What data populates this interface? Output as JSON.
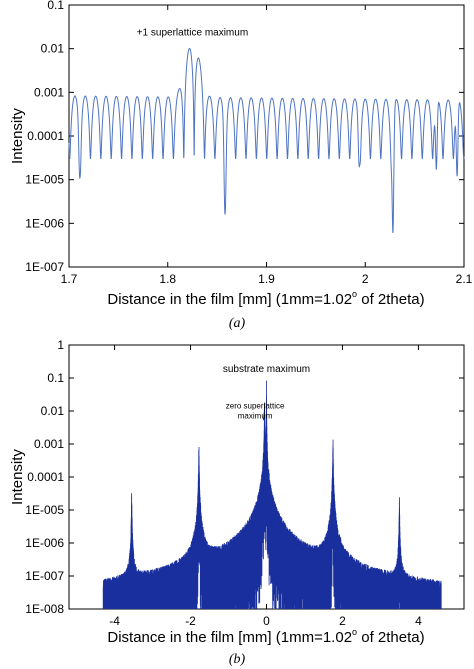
{
  "chart_data": [
    {
      "type": "line",
      "subfigure": "(a)",
      "xlabel": "Distance in the film [mm] (1mm=1.02",
      "xlabel_sup": "o",
      "xlabel_tail": " of 2theta)",
      "ylabel": "Intensity",
      "yscale": "log",
      "xlim": [
        1.7,
        2.1
      ],
      "ylim": [
        1e-07,
        0.1
      ],
      "xticks": [
        "1.7",
        "1.8",
        "1.9",
        "2",
        "2.1"
      ],
      "yticks": [
        "0.1",
        "0.01",
        "0.001",
        "0.0001",
        "1E-005",
        "1E-006",
        "1E-007"
      ],
      "annotations": [
        {
          "text": "+1 superlattice maximum",
          "x": 1.825,
          "y": 0.018
        }
      ],
      "series": [
        {
          "color": "#4f74c4",
          "fringe_period_mm": 0.0105,
          "first_fringe_max_mm": 1.706,
          "fringe_max_level": 0.0008,
          "peak": {
            "x": 1.825,
            "y": 0.012
          },
          "deep_minima": [
            {
              "x": 1.711,
              "y": 1.1e-05
            },
            {
              "x": 1.858,
              "y": 1.6e-06
            },
            {
              "x": 1.994,
              "y": 2e-05
            },
            {
              "x": 2.028,
              "y": 6e-07
            },
            {
              "x": 2.072,
              "y": 1.7e-05
            },
            {
              "x": 2.093,
              "y": 1.2e-05
            }
          ]
        }
      ]
    },
    {
      "type": "line",
      "subfigure": "(b)",
      "xlabel": "Distance in the film [mm] (1mm=1.02",
      "xlabel_sup": "o",
      "xlabel_tail": " of 2theta)",
      "ylabel": "Intensity",
      "yscale": "log",
      "xlim": [
        -5.2,
        5.2
      ],
      "ylim": [
        1e-08,
        1
      ],
      "xticks": [
        "-4",
        "-2",
        "0",
        "2",
        "4"
      ],
      "xtick_values": [
        -4,
        -2,
        0,
        2,
        4
      ],
      "yticks": [
        "1",
        "0.1",
        "0.01",
        "0.001",
        "0.0001",
        "1E-005",
        "1E-006",
        "1E-007",
        "1E-008"
      ],
      "annotations": [
        {
          "text": "substrate maximum",
          "x": 0.0,
          "y": 0.1
        },
        {
          "text": "zero superlattice",
          "x": -0.3,
          "y": 0.012
        },
        {
          "text": "maximum",
          "x": -0.3,
          "y": 0.006
        }
      ],
      "series": [
        {
          "color": "#1a2f9e",
          "x_range": [
            -4.3,
            4.6
          ],
          "peaks": [
            {
              "x": -3.55,
              "y": 3e-05
            },
            {
              "x": -1.78,
              "y": 0.0008
            },
            {
              "x": -0.05,
              "y": 0.015
            },
            {
              "x": 0.0,
              "y": 0.1
            },
            {
              "x": 1.75,
              "y": 0.0012
            },
            {
              "x": 3.5,
              "y": 2e-05
            }
          ]
        }
      ]
    }
  ]
}
